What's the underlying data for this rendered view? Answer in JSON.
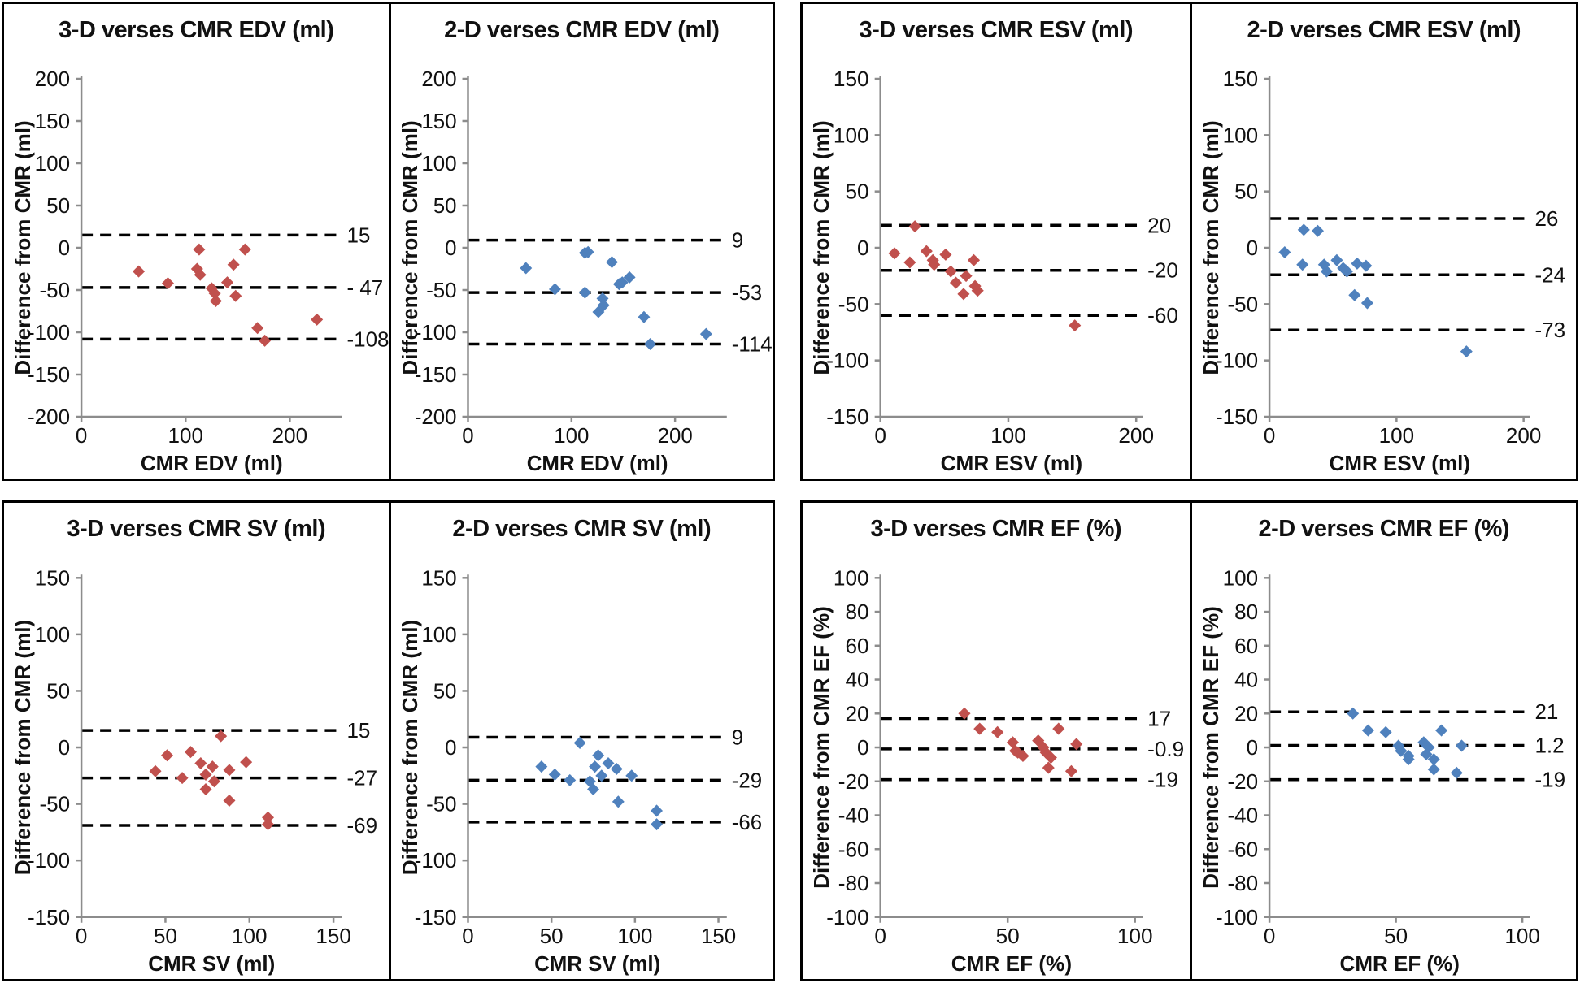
{
  "colors": {
    "red_series": "#C0504D",
    "blue_series": "#4F81BD",
    "axis": "#8c8c8c",
    "limit_line": "#000000"
  },
  "chart_data": [
    {
      "type": "scatter",
      "title": "3-D verses CMR EDV (ml)",
      "xlabel": "CMR EDV (ml)",
      "ylabel": "Difference from CMR (ml)",
      "xlim": [
        0,
        250
      ],
      "ylim": [
        -200,
        200
      ],
      "xticks": [
        0,
        100,
        200
      ],
      "yticks": [
        200,
        150,
        100,
        50,
        0,
        -50,
        -100,
        -150,
        -200
      ],
      "marker": "diamond",
      "marker_color": "#C0504D",
      "limit_line_style": "dashed",
      "limit_lines": [
        {
          "value": 15,
          "label": "15"
        },
        {
          "value": -47,
          "label": "- 47"
        },
        {
          "value": -108,
          "label": "-108"
        }
      ],
      "points": [
        [
          55,
          -28
        ],
        [
          83,
          -42
        ],
        [
          111,
          -25
        ],
        [
          113,
          -2
        ],
        [
          114,
          -32
        ],
        [
          125,
          -48
        ],
        [
          128,
          -54
        ],
        [
          129,
          -63
        ],
        [
          140,
          -41
        ],
        [
          146,
          -20
        ],
        [
          148,
          -57
        ],
        [
          157,
          -2
        ],
        [
          169,
          -95
        ],
        [
          176,
          -110
        ],
        [
          226,
          -85
        ]
      ]
    },
    {
      "type": "scatter",
      "title": "2-D verses CMR EDV (ml)",
      "xlabel": "CMR EDV (ml)",
      "ylabel": "Difference from CMR (ml)",
      "xlim": [
        0,
        250
      ],
      "ylim": [
        -200,
        200
      ],
      "xticks": [
        0,
        100,
        200
      ],
      "yticks": [
        200,
        150,
        100,
        50,
        0,
        -50,
        -100,
        -150,
        -200
      ],
      "marker": "diamond",
      "marker_color": "#4F81BD",
      "limit_line_style": "dashed",
      "limit_lines": [
        {
          "value": 9,
          "label": "9"
        },
        {
          "value": -53,
          "label": "-53"
        },
        {
          "value": -114,
          "label": "-114"
        }
      ],
      "points": [
        [
          56,
          -24
        ],
        [
          84,
          -49
        ],
        [
          113,
          -53
        ],
        [
          113,
          -6
        ],
        [
          116,
          -5
        ],
        [
          126,
          -76
        ],
        [
          130,
          -60
        ],
        [
          131,
          -68
        ],
        [
          139,
          -17
        ],
        [
          146,
          -43
        ],
        [
          149,
          -41
        ],
        [
          156,
          -35
        ],
        [
          170,
          -82
        ],
        [
          176,
          -114
        ],
        [
          230,
          -102
        ]
      ]
    },
    {
      "type": "scatter",
      "title": "3-D verses CMR ESV (ml)",
      "xlabel": "CMR ESV (ml)",
      "ylabel": "Difference from CMR (ml)",
      "xlim": [
        0,
        205
      ],
      "ylim": [
        -150,
        150
      ],
      "xticks": [
        0,
        100,
        200
      ],
      "yticks": [
        150,
        100,
        50,
        0,
        -50,
        -100,
        -150
      ],
      "marker": "diamond",
      "marker_color": "#C0504D",
      "limit_line_style": "dashed",
      "limit_lines": [
        {
          "value": 20,
          "label": "20"
        },
        {
          "value": -20,
          "label": "-20"
        },
        {
          "value": -60,
          "label": "-60"
        }
      ],
      "points": [
        [
          11,
          -5
        ],
        [
          23,
          -13
        ],
        [
          27,
          19
        ],
        [
          36,
          -3
        ],
        [
          41,
          -11
        ],
        [
          42,
          -15
        ],
        [
          51,
          -6
        ],
        [
          55,
          -21
        ],
        [
          59,
          -31
        ],
        [
          65,
          -41
        ],
        [
          67,
          -25
        ],
        [
          73,
          -11
        ],
        [
          74,
          -34
        ],
        [
          76,
          -38
        ],
        [
          152,
          -69
        ]
      ]
    },
    {
      "type": "scatter",
      "title": "2-D verses CMR ESV (ml)",
      "xlabel": "CMR ESV (ml)",
      "ylabel": "Difference from CMR (ml)",
      "xlim": [
        0,
        205
      ],
      "ylim": [
        -150,
        150
      ],
      "xticks": [
        0,
        100,
        200
      ],
      "yticks": [
        150,
        100,
        50,
        0,
        -50,
        -100,
        -150
      ],
      "marker": "diamond",
      "marker_color": "#4F81BD",
      "limit_line_style": "dashed",
      "limit_lines": [
        {
          "value": 26,
          "label": "26"
        },
        {
          "value": -24,
          "label": "-24"
        },
        {
          "value": -73,
          "label": "-73"
        }
      ],
      "points": [
        [
          12,
          -4
        ],
        [
          26,
          -15
        ],
        [
          27,
          16
        ],
        [
          38,
          15
        ],
        [
          43,
          -15
        ],
        [
          45,
          -21
        ],
        [
          53,
          -11
        ],
        [
          58,
          -18
        ],
        [
          60,
          -20
        ],
        [
          61,
          -21
        ],
        [
          67,
          -42
        ],
        [
          69,
          -14
        ],
        [
          76,
          -16
        ],
        [
          77,
          -49
        ],
        [
          155,
          -92
        ]
      ]
    },
    {
      "type": "scatter",
      "title": "3-D verses CMR SV (ml)",
      "xlabel": "CMR SV (ml)",
      "ylabel": "Difference from CMR (ml)",
      "xlim": [
        0,
        155
      ],
      "ylim": [
        -150,
        150
      ],
      "xticks": [
        0,
        50,
        100,
        150
      ],
      "yticks": [
        150,
        100,
        50,
        0,
        -50,
        -100,
        -150
      ],
      "marker": "diamond",
      "marker_color": "#C0504D",
      "limit_line_style": "dashed",
      "limit_lines": [
        {
          "value": 15,
          "label": "15"
        },
        {
          "value": -27,
          "label": "-27"
        },
        {
          "value": -69,
          "label": "-69"
        }
      ],
      "points": [
        [
          44,
          -21
        ],
        [
          51,
          -7
        ],
        [
          60,
          -27
        ],
        [
          65,
          -4
        ],
        [
          71,
          -14
        ],
        [
          74,
          -24
        ],
        [
          74,
          -37
        ],
        [
          78,
          -17
        ],
        [
          79,
          -30
        ],
        [
          83,
          10
        ],
        [
          88,
          -47
        ],
        [
          88,
          -20
        ],
        [
          98,
          -13
        ],
        [
          111,
          -62
        ],
        [
          111,
          -68
        ]
      ]
    },
    {
      "type": "scatter",
      "title": "2-D verses CMR SV (ml)",
      "xlabel": "CMR SV (ml)",
      "ylabel": "Difference from CMR (ml)",
      "xlim": [
        0,
        155
      ],
      "ylim": [
        -150,
        150
      ],
      "xticks": [
        0,
        50,
        100,
        150
      ],
      "yticks": [
        150,
        100,
        50,
        0,
        -50,
        -100,
        -150
      ],
      "marker": "diamond",
      "marker_color": "#4F81BD",
      "limit_line_style": "dashed",
      "limit_lines": [
        {
          "value": 9,
          "label": "9"
        },
        {
          "value": -29,
          "label": "-29"
        },
        {
          "value": -66,
          "label": "-66"
        }
      ],
      "points": [
        [
          44,
          -17
        ],
        [
          52,
          -24
        ],
        [
          61,
          -29
        ],
        [
          67,
          4
        ],
        [
          73,
          -30
        ],
        [
          75,
          -37
        ],
        [
          76,
          -17
        ],
        [
          78,
          -7
        ],
        [
          80,
          -25
        ],
        [
          84,
          -14
        ],
        [
          89,
          -19
        ],
        [
          90,
          -48
        ],
        [
          98,
          -25
        ],
        [
          113,
          -56
        ],
        [
          113,
          -68
        ]
      ]
    },
    {
      "type": "scatter",
      "title": "3-D verses CMR EF (%)",
      "xlabel": "CMR EF (%)",
      "ylabel": "Difference from CMR EF (%)",
      "xlim": [
        0,
        103
      ],
      "ylim": [
        -100,
        100
      ],
      "xticks": [
        0,
        50,
        100
      ],
      "yticks": [
        100,
        80,
        60,
        40,
        20,
        0,
        -20,
        -40,
        -60,
        -80,
        -100
      ],
      "marker": "diamond",
      "marker_color": "#C0504D",
      "limit_line_style": "dashed",
      "limit_lines": [
        {
          "value": 17,
          "label": "17"
        },
        {
          "value": -0.9,
          "label": "-0.9"
        },
        {
          "value": -19,
          "label": "-19"
        }
      ],
      "points": [
        [
          33,
          20
        ],
        [
          39,
          11
        ],
        [
          46,
          9
        ],
        [
          52,
          3
        ],
        [
          53,
          -2
        ],
        [
          54,
          -3
        ],
        [
          56,
          -5
        ],
        [
          62,
          4
        ],
        [
          64,
          0
        ],
        [
          65,
          -3
        ],
        [
          66,
          -12
        ],
        [
          67,
          -6
        ],
        [
          70,
          11
        ],
        [
          75,
          -14
        ],
        [
          77,
          2
        ]
      ]
    },
    {
      "type": "scatter",
      "title": "2-D verses CMR EF (%)",
      "xlabel": "CMR EF (%)",
      "ylabel": "Difference from CMR EF (%)",
      "xlim": [
        0,
        103
      ],
      "ylim": [
        -100,
        100
      ],
      "xticks": [
        0,
        50,
        100
      ],
      "yticks": [
        100,
        80,
        60,
        40,
        20,
        0,
        -20,
        -40,
        -60,
        -80,
        -100
      ],
      "marker": "diamond",
      "marker_color": "#4F81BD",
      "limit_line_style": "dashed",
      "limit_lines": [
        {
          "value": 21,
          "label": "21"
        },
        {
          "value": 1.2,
          "label": "1.2"
        },
        {
          "value": -19,
          "label": "-19"
        }
      ],
      "points": [
        [
          33,
          20
        ],
        [
          39,
          10
        ],
        [
          46,
          9
        ],
        [
          51,
          1
        ],
        [
          52,
          -2
        ],
        [
          55,
          -7
        ],
        [
          55,
          -5
        ],
        [
          61,
          3
        ],
        [
          63,
          0
        ],
        [
          62,
          -4
        ],
        [
          65,
          -7
        ],
        [
          65,
          -13
        ],
        [
          68,
          10
        ],
        [
          74,
          -15
        ],
        [
          76,
          1
        ]
      ]
    }
  ]
}
